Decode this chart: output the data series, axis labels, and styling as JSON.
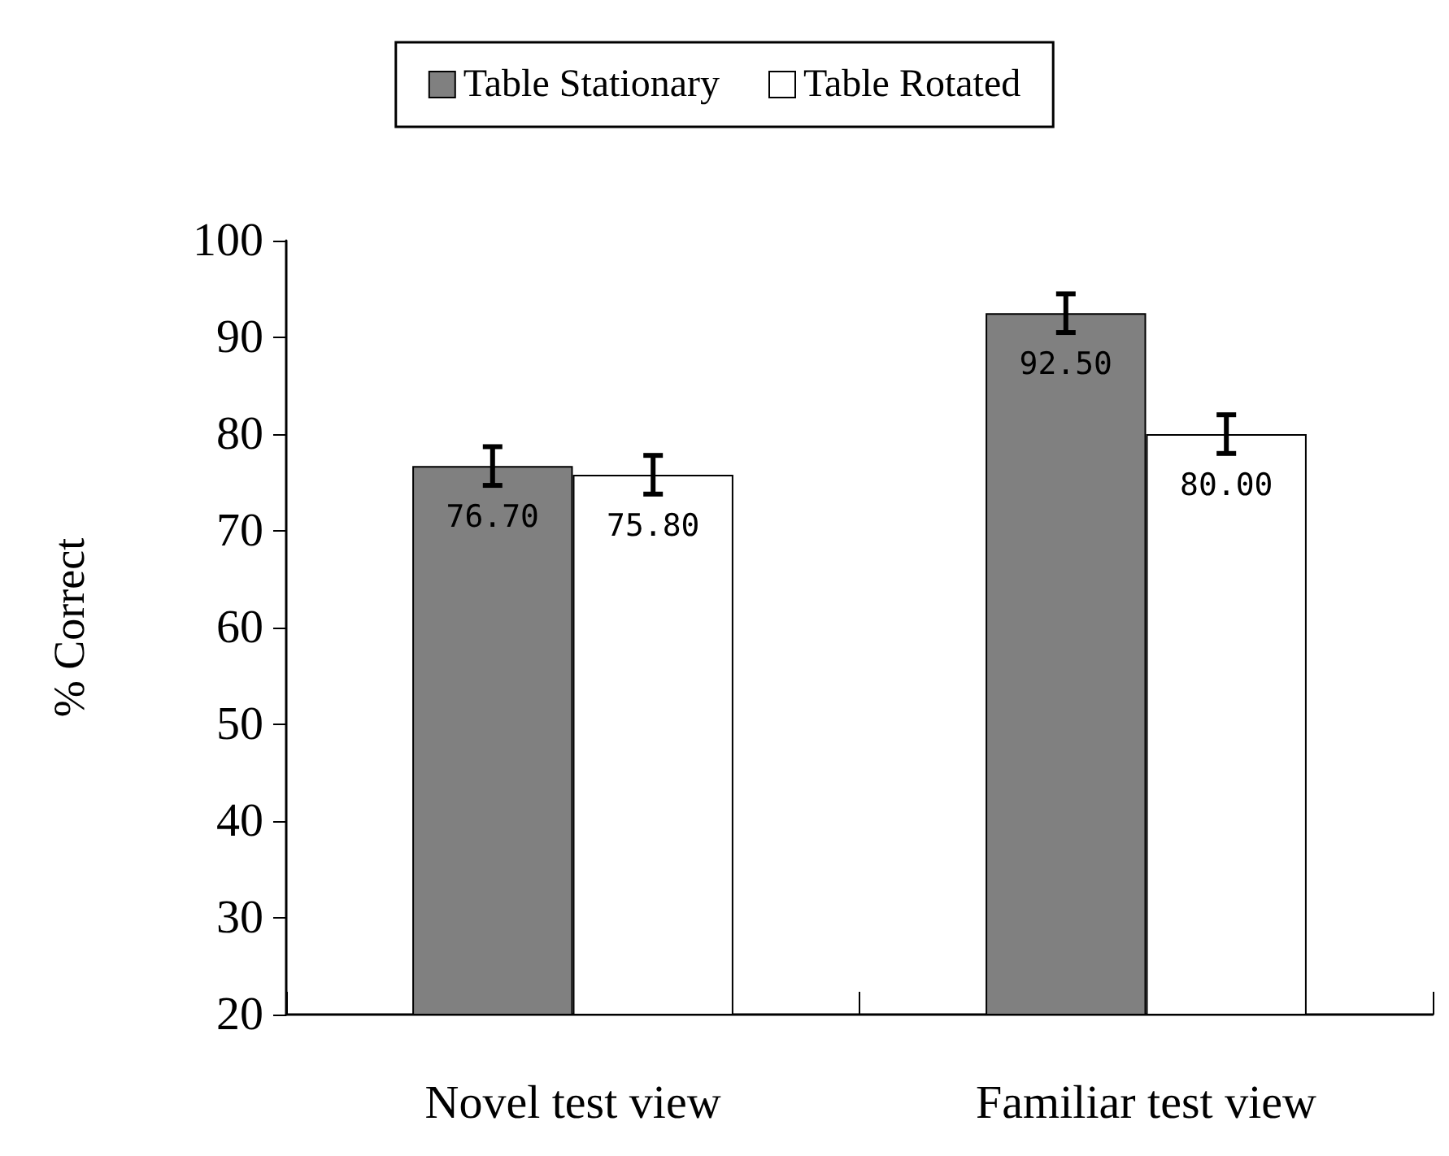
{
  "chart_data": {
    "type": "bar",
    "ylabel": "% Correct",
    "categories": [
      "Novel test view",
      "Familiar test view"
    ],
    "series": [
      {
        "name": "Table Stationary",
        "color": "#808080",
        "values": [
          76.7,
          92.5
        ],
        "errors": [
          2,
          2
        ],
        "value_labels": [
          "76.70",
          "92.50"
        ]
      },
      {
        "name": "Table Rotated",
        "color": "#ffffff",
        "values": [
          75.8,
          80.0
        ],
        "errors": [
          2,
          2
        ],
        "value_labels": [
          "75.80",
          "80.00"
        ]
      }
    ],
    "ylim": [
      20,
      100
    ],
    "yticks": [
      20,
      30,
      40,
      50,
      60,
      70,
      80,
      90,
      100
    ],
    "grid": false,
    "legend": "top"
  }
}
